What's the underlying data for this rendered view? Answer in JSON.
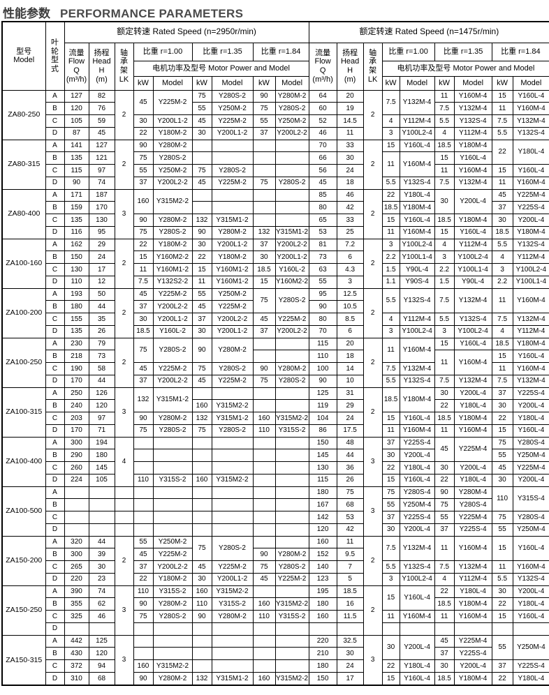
{
  "page_title": {
    "zh": "性能参数",
    "en": "PERFORMANCE PARAMETERS"
  },
  "table": {
    "header": {
      "model_col": "型号\nModel",
      "impeller_col": "叶\n轮\n型\n式",
      "sections": [
        {
          "title": "额定转速  Rated Speed  (n=2950r/min)"
        },
        {
          "title": "额定转速  Rated Speed  (n=1475r/min)"
        }
      ],
      "flow_col": "流量\nFlow\nQ\n(m³/h)",
      "head_col": "扬程\nHead\nH\n(m)",
      "bearing_col": "轴\n承\n架\nLK",
      "specific_gravity": [
        "比重 r=1.00",
        "比重 r=1.35",
        "比重 r=1.84"
      ],
      "motor_header": "电机功率及型号  Motor Power and Model",
      "kw_label": "kW",
      "model_label": "Model"
    },
    "body": [
      [
        [
          "ZA80-250",
          4
        ],
        "A",
        "127",
        "82",
        [
          "2",
          4
        ],
        [
          "45",
          2
        ],
        [
          "Y225M-2",
          2
        ],
        "75",
        "Y280S-2",
        "90",
        "Y280M-2",
        "64",
        "20",
        [
          "2",
          4
        ],
        [
          "7.5",
          2
        ],
        [
          "Y132M-4",
          2
        ],
        "11",
        "Y160M-4",
        "15",
        "Y160L-4"
      ],
      [
        "B",
        "120",
        "76",
        "55",
        "Y250M-2",
        "75",
        "Y280S-2",
        "60",
        "19",
        "7.5",
        "Y132M-4",
        "11",
        "Y160M-4"
      ],
      [
        "C",
        "105",
        "59",
        "30",
        "Y200L1-2",
        "45",
        "Y225M-2",
        "55",
        "Y250M-2",
        "52",
        "14.5",
        "4",
        "Y112M-4",
        "5.5",
        "Y132S-4",
        "7.5",
        "Y132M-4"
      ],
      [
        "D",
        "87",
        "45",
        "22",
        "Y180M-2",
        "30",
        "Y200L1-2",
        "37",
        "Y200L2-2",
        "46",
        "11",
        "3",
        "Y100L2-4",
        "4",
        "Y112M-4",
        "5.5",
        "Y132S-4"
      ],
      [
        [
          "ZA80-315",
          4
        ],
        "A",
        "141",
        "127",
        [
          "2",
          4
        ],
        "90",
        "Y280M-2",
        "",
        "",
        "",
        "",
        "70",
        "33",
        [
          "2",
          4
        ],
        "15",
        "Y160L-4",
        "18.5",
        "Y180M-4",
        [
          "22",
          2
        ],
        [
          "Y180L-4",
          2
        ]
      ],
      [
        "B",
        "135",
        "121",
        "75",
        "Y280S-2",
        "",
        "",
        "",
        "",
        "66",
        "30",
        [
          "11",
          2
        ],
        [
          "Y160M-4",
          2
        ],
        "15",
        "Y160L-4"
      ],
      [
        "C",
        "115",
        "97",
        "55",
        "Y250M-2",
        "75",
        "Y280S-2",
        "",
        "",
        "56",
        "24",
        "11",
        "Y160M-4",
        "15",
        "Y160L-4"
      ],
      [
        "D",
        "90",
        "74",
        "37",
        "Y200L2-2",
        "45",
        "Y225M-2",
        "75",
        "Y280S-2",
        "45",
        "18",
        "5.5",
        "Y132S-4",
        "7.5",
        "Y132M-4",
        "11",
        "Y160M-4"
      ],
      [
        [
          "ZA80-400",
          4
        ],
        "A",
        "171",
        "187",
        [
          "3",
          4
        ],
        [
          "160",
          2
        ],
        [
          "Y315M2-2",
          2
        ],
        "",
        "",
        "",
        "",
        "85",
        "46",
        [
          "2",
          4
        ],
        "22",
        "Y180L-4",
        [
          "30",
          2
        ],
        [
          "Y200L-4",
          2
        ],
        "45",
        "Y225M-4"
      ],
      [
        "B",
        "159",
        "170",
        "",
        "",
        "",
        "",
        "80",
        "42",
        "18.5",
        "Y180M-4",
        "37",
        "Y225S-4"
      ],
      [
        "C",
        "135",
        "130",
        "90",
        "Y280M-2",
        "132",
        "Y315M1-2",
        "",
        "",
        "65",
        "33",
        "15",
        "Y160L-4",
        "18.5",
        "Y180M-4",
        "30",
        "Y200L-4"
      ],
      [
        "D",
        "116",
        "95",
        "75",
        "Y280S-2",
        "90",
        "Y280M-2",
        "132",
        "Y315M1-2",
        "53",
        "25",
        "11",
        "Y160M-4",
        "15",
        "Y160L-4",
        "18.5",
        "Y180M-4"
      ],
      [
        [
          "ZA100-160",
          4
        ],
        "A",
        "162",
        "29",
        [
          "2",
          4
        ],
        "22",
        "Y180M-2",
        "30",
        "Y200L1-2",
        "37",
        "Y200L2-2",
        "81",
        "7.2",
        [
          "2",
          4
        ],
        "3",
        "Y100L2-4",
        "4",
        "Y112M-4",
        "5.5",
        "Y132S-4"
      ],
      [
        "B",
        "150",
        "24",
        "15",
        "Y160M2-2",
        "22",
        "Y180M-2",
        "30",
        "Y200L1-2",
        "73",
        "6",
        "2.2",
        "Y100L1-4",
        "3",
        "Y100L2-4",
        "4",
        "Y112M-4"
      ],
      [
        "C",
        "130",
        "17",
        "11",
        "Y160M1-2",
        "15",
        "Y160M1-2",
        "18.5",
        "Y160L-2",
        "63",
        "4.3",
        "1.5",
        "Y90L-4",
        "2.2",
        "Y100L1-4",
        "3",
        "Y100L2-4"
      ],
      [
        "D",
        "110",
        "12",
        "7.5",
        "Y132S2-2",
        "11",
        "Y160M1-2",
        "15",
        "Y160M2-2",
        "55",
        "3",
        "1.1",
        "Y90S-4",
        "1.5",
        "Y90L-4",
        "2.2",
        "Y100L1-4"
      ],
      [
        [
          "ZA100-200",
          4
        ],
        "A",
        "193",
        "50",
        [
          "2",
          4
        ],
        "45",
        "Y225M-2",
        "55",
        "Y250M-2",
        [
          "75",
          2
        ],
        [
          "Y280S-2",
          2
        ],
        "95",
        "12.5",
        [
          "2",
          4
        ],
        [
          "5.5",
          2
        ],
        [
          "Y132S-4",
          2
        ],
        [
          "7.5",
          2
        ],
        [
          "Y132M-4",
          2
        ],
        [
          "11",
          2
        ],
        [
          "Y160M-4",
          2
        ]
      ],
      [
        "B",
        "180",
        "44",
        "37",
        "Y200L2-2",
        "45",
        "Y225M-2",
        "90",
        "10.5"
      ],
      [
        "C",
        "155",
        "35",
        "30",
        "Y200L1-2",
        "37",
        "Y200L2-2",
        "45",
        "Y225M-2",
        "80",
        "8.5",
        "4",
        "Y112M-4",
        "5.5",
        "Y132S-4",
        "7.5",
        "Y132M-4"
      ],
      [
        "D",
        "135",
        "26",
        "18.5",
        "Y160L-2",
        "30",
        "Y200L1-2",
        "37",
        "Y200L2-2",
        "70",
        "6",
        "3",
        "Y100L2-4",
        "3",
        "Y100L2-4",
        "4",
        "Y112M-4"
      ],
      [
        [
          "ZA100-250",
          4
        ],
        "A",
        "230",
        "79",
        [
          "2",
          4
        ],
        [
          "75",
          2
        ],
        [
          "Y280S-2",
          2
        ],
        [
          "90",
          2
        ],
        [
          "Y280M-2",
          2
        ],
        "",
        "",
        "115",
        "20",
        [
          "2",
          4
        ],
        [
          "11",
          2
        ],
        [
          "Y160M-4",
          2
        ],
        "15",
        "Y160L-4",
        "18.5",
        "Y180M-4"
      ],
      [
        "B",
        "218",
        "73",
        "",
        "",
        "110",
        "18",
        [
          "11",
          2
        ],
        [
          "Y160M-4",
          2
        ],
        "15",
        "Y160L-4"
      ],
      [
        "C",
        "190",
        "58",
        "45",
        "Y225M-2",
        "75",
        "Y280S-2",
        "90",
        "Y280M-2",
        "100",
        "14",
        "7.5",
        "Y132M-4",
        "11",
        "Y160M-4"
      ],
      [
        "D",
        "170",
        "44",
        "37",
        "Y200L2-2",
        "45",
        "Y225M-2",
        "75",
        "Y280S-2",
        "90",
        "10",
        "5.5",
        "Y132S-4",
        "7.5",
        "Y132M-4",
        "7.5",
        "Y132M-4"
      ],
      [
        [
          "ZA100-315",
          4
        ],
        "A",
        "250",
        "126",
        [
          "3",
          4
        ],
        [
          "132",
          2
        ],
        [
          "Y315M1-2",
          2
        ],
        "",
        "",
        "",
        "",
        "125",
        "31",
        [
          "2",
          4
        ],
        [
          "18.5",
          2
        ],
        [
          "Y180M-4",
          2
        ],
        "30",
        "Y200L-4",
        "37",
        "Y225S-4"
      ],
      [
        "B",
        "240",
        "120",
        "160",
        "Y315M2-2",
        "",
        "",
        "119",
        "29",
        "22",
        "Y180L-4",
        "30",
        "Y200L-4"
      ],
      [
        "C",
        "203",
        "97",
        "90",
        "Y280M-2",
        "132",
        "Y315M1-2",
        "160",
        "Y315M2-2",
        "104",
        "24",
        "15",
        "Y160L-4",
        "18.5",
        "Y180M-4",
        "22",
        "Y180L-4"
      ],
      [
        "D",
        "170",
        "71",
        "75",
        "Y280S-2",
        "75",
        "Y280S-2",
        "110",
        "Y315S-2",
        "86",
        "17.5",
        "11",
        "Y160M-4",
        "11",
        "Y160M-4",
        "15",
        "Y160L-4"
      ],
      [
        [
          "ZA100-400",
          4
        ],
        "A",
        "300",
        "194",
        [
          "4",
          4
        ],
        "",
        "",
        "",
        "",
        "",
        "",
        "150",
        "48",
        [
          "3",
          4
        ],
        "37",
        "Y225S-4",
        [
          "45",
          2
        ],
        [
          "Y225M-4",
          2
        ],
        "75",
        "Y280S-4"
      ],
      [
        "B",
        "290",
        "180",
        "",
        "",
        "",
        "",
        "",
        "",
        "145",
        "44",
        "30",
        "Y200L-4",
        "55",
        "Y250M-4"
      ],
      [
        "C",
        "260",
        "145",
        "",
        "",
        "",
        "",
        "",
        "",
        "130",
        "36",
        "22",
        "Y180L-4",
        "30",
        "Y200L-4",
        "45",
        "Y225M-4"
      ],
      [
        "D",
        "224",
        "105",
        "110",
        "Y315S-2",
        "160",
        "Y315M2-2",
        "",
        "",
        "115",
        "26",
        "15",
        "Y160L-4",
        "22",
        "Y180L-4",
        "30",
        "Y200L-4"
      ],
      [
        [
          "ZA100-500",
          4
        ],
        "A",
        "",
        "",
        "",
        "",
        "",
        "",
        "",
        "",
        "",
        "180",
        "75",
        [
          "3",
          4
        ],
        "75",
        "Y280S-4",
        "90",
        "Y280M-4",
        [
          "110",
          2
        ],
        [
          "Y315S-4",
          2
        ]
      ],
      [
        "B",
        "",
        "",
        "",
        "",
        "",
        "",
        "",
        "",
        "",
        "167",
        "68",
        "55",
        "Y250M-4",
        "75",
        "Y280S-4"
      ],
      [
        "C",
        "",
        "",
        "",
        "",
        "",
        "",
        "",
        "",
        "",
        "142",
        "53",
        "37",
        "Y225S-4",
        "55",
        "Y225M-4",
        "75",
        "Y280S-4"
      ],
      [
        "D",
        "",
        "",
        "",
        "",
        "",
        "",
        "",
        "",
        "",
        "120",
        "42",
        "30",
        "Y200L-4",
        "37",
        "Y225S-4",
        "55",
        "Y250M-4"
      ],
      [
        [
          "ZA150-200",
          4
        ],
        "A",
        "320",
        "44",
        [
          "2",
          4
        ],
        "55",
        "Y250M-2",
        [
          "75",
          2
        ],
        [
          "Y280S-2",
          2
        ],
        "",
        "",
        "160",
        "11",
        [
          "2",
          4
        ],
        [
          "7.5",
          2
        ],
        [
          "Y132M-4",
          2
        ],
        [
          "11",
          2
        ],
        [
          "Y160M-4",
          2
        ],
        [
          "15",
          2
        ],
        [
          "Y160L-4",
          2
        ]
      ],
      [
        "B",
        "300",
        "39",
        "45",
        "Y225M-2",
        "90",
        "Y280M-2",
        "152",
        "9.5"
      ],
      [
        "C",
        "265",
        "30",
        "37",
        "Y200L2-2",
        "45",
        "Y225M-2",
        "75",
        "Y280S-2",
        "140",
        "7",
        "5.5",
        "Y132S-4",
        "7.5",
        "Y132M-4",
        "11",
        "Y160M-4"
      ],
      [
        "D",
        "220",
        "23",
        "22",
        "Y180M-2",
        "30",
        "Y200L1-2",
        "45",
        "Y225M-2",
        "123",
        "5",
        "3",
        "Y100L2-4",
        "4",
        "Y112M-4",
        "5.5",
        "Y132S-4"
      ],
      [
        [
          "ZA150-250",
          4
        ],
        "A",
        "390",
        "74",
        [
          "3",
          4
        ],
        "110",
        "Y315S-2",
        "160",
        "Y315M2-2",
        "",
        "",
        "195",
        "18.5",
        [
          "2",
          4
        ],
        [
          "15",
          2
        ],
        [
          "Y160L-4",
          2
        ],
        "22",
        "Y180L-4",
        "30",
        "Y200L-4"
      ],
      [
        "B",
        "355",
        "62",
        "90",
        "Y280M-2",
        "110",
        "Y315S-2",
        "160",
        "Y315M2-2",
        "180",
        "16",
        "18.5",
        "Y180M-4",
        "22",
        "Y180L-4"
      ],
      [
        "C",
        "325",
        "46",
        "75",
        "Y280S-2",
        "90",
        "Y280M-2",
        "110",
        "Y315S-2",
        "160",
        "11.5",
        "11",
        "Y160M-4",
        "11",
        "Y160M-4",
        "15",
        "Y160L-4"
      ],
      [
        "D",
        "",
        "",
        "",
        "",
        "",
        "",
        "",
        "",
        "",
        "",
        "",
        "",
        "",
        "",
        "",
        ""
      ],
      [
        [
          "ZA150-315",
          4
        ],
        "A",
        "442",
        "125",
        [
          "3",
          4
        ],
        "",
        "",
        "",
        "",
        "",
        "",
        "220",
        "32.5",
        [
          "3",
          4
        ],
        [
          "30",
          2
        ],
        [
          "Y200L-4",
          2
        ],
        "45",
        "Y225M-4",
        [
          "55",
          2
        ],
        [
          "Y250M-4",
          2
        ]
      ],
      [
        "B",
        "430",
        "120",
        "",
        "",
        "",
        "",
        "",
        "",
        "210",
        "30",
        "37",
        "Y225S-4"
      ],
      [
        "C",
        "372",
        "94",
        "160",
        "Y315M2-2",
        "",
        "",
        "",
        "",
        "180",
        "24",
        "22",
        "Y180L-4",
        "30",
        "Y200L-4",
        "37",
        "Y225S-4"
      ],
      [
        "D",
        "310",
        "68",
        "90",
        "Y280M-2",
        "132",
        "Y315M1-2",
        "160",
        "Y315M2-2",
        "150",
        "17",
        "15",
        "Y160L-4",
        "18.5",
        "Y180M-4",
        "22",
        "Y180L-4"
      ]
    ]
  }
}
